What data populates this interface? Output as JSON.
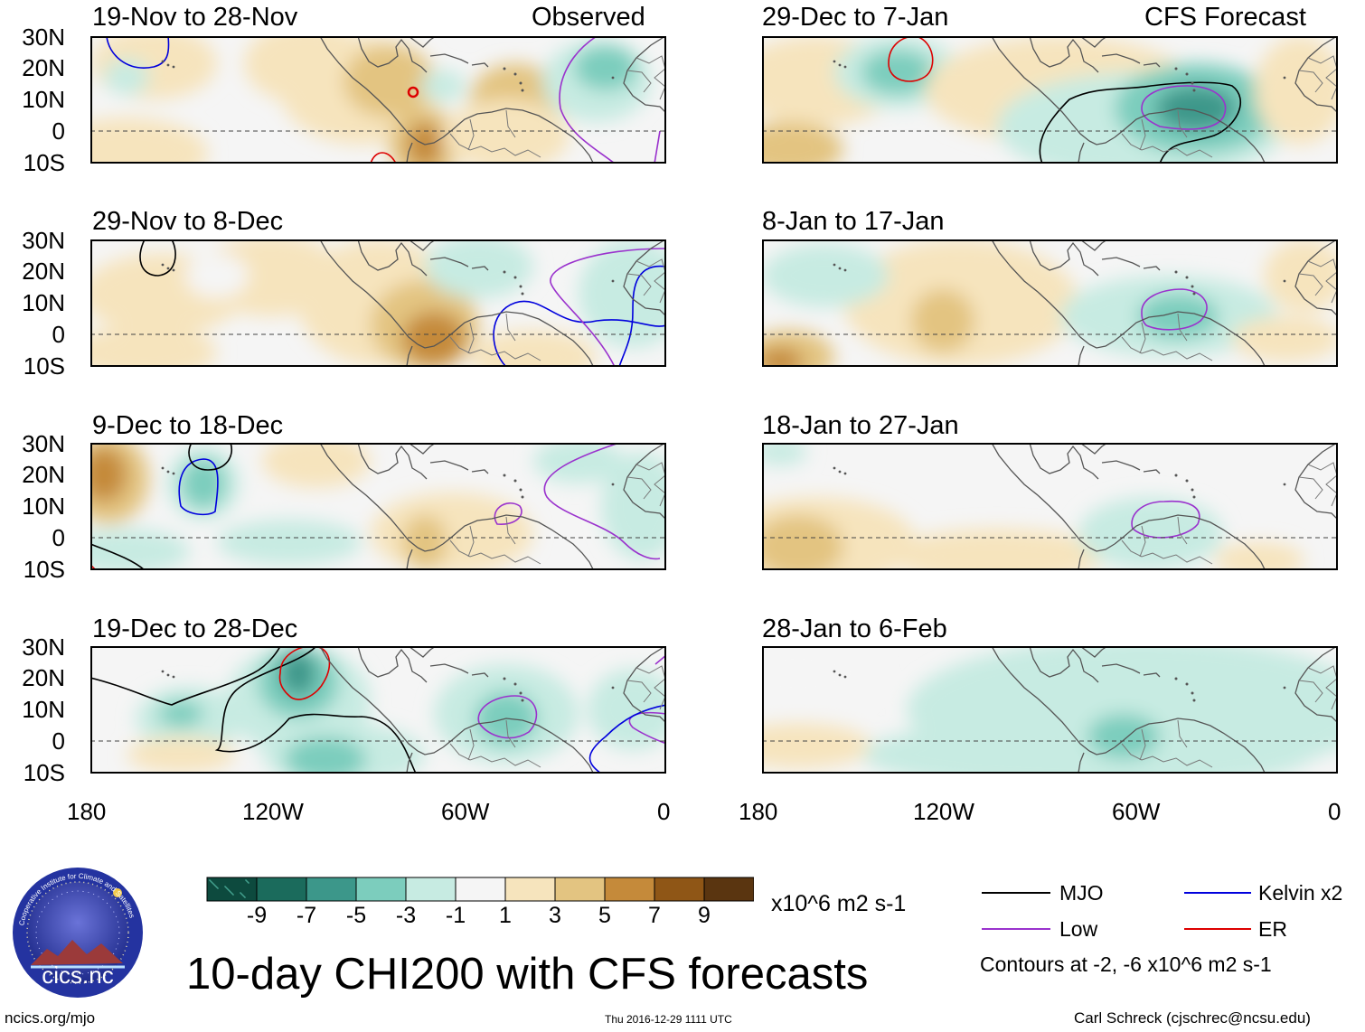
{
  "header": {
    "left_label": "Observed",
    "right_label": "CFS Forecast"
  },
  "panels": [
    {
      "title": "19-Nov to 28-Nov",
      "column": "observed"
    },
    {
      "title": "29-Nov to 8-Dec",
      "column": "observed"
    },
    {
      "title": "9-Dec to 18-Dec",
      "column": "observed"
    },
    {
      "title": "19-Dec to 28-Dec",
      "column": "observed"
    },
    {
      "title": "29-Dec to 7-Jan",
      "column": "forecast"
    },
    {
      "title": "8-Jan to 17-Jan",
      "column": "forecast"
    },
    {
      "title": "18-Jan to 27-Jan",
      "column": "forecast"
    },
    {
      "title": "28-Jan to 6-Feb",
      "column": "forecast"
    }
  ],
  "map_axes": {
    "lat_ticks": [
      "30N",
      "20N",
      "10N",
      "0",
      "10S"
    ],
    "lon_ticks": [
      "180",
      "120W",
      "60W",
      "0"
    ],
    "lat_range": [
      -10,
      30
    ],
    "lon_range": [
      -180,
      0
    ]
  },
  "colorbar": {
    "tick_labels": [
      "-9",
      "-7",
      "-5",
      "-3",
      "-1",
      "1",
      "3",
      "5",
      "7",
      "9"
    ],
    "colors": [
      "#0d4a3e",
      "#1b6b5c",
      "#3c978a",
      "#7ccdbd",
      "#c7ebe2",
      "#f5f5f5",
      "#f6e4bd",
      "#e3c481",
      "#c58a3a",
      "#8f5616",
      "#5a3510"
    ],
    "units": "x10^6 m2 s-1"
  },
  "title": "10-day CHI200 with CFS forecasts",
  "legend": {
    "items": [
      {
        "label": "MJO",
        "color": "#000000"
      },
      {
        "label": "Kelvin x2",
        "color": "#0000dd"
      },
      {
        "label": "Low",
        "color": "#9a32cd"
      },
      {
        "label": "ER",
        "color": "#dd0000"
      }
    ],
    "note": "Contours at -2, -6 x10^6 m2 s-1"
  },
  "logo": {
    "text": "cics.nc",
    "ring_text": "Cooperative Institute for Climate and Satellites"
  },
  "footer": {
    "url": "ncics.org/mjo",
    "timestamp": "Thu 2016-12-29 1111 UTC",
    "credit": "Carl Schreck (cjschrec@ncsu.edu)"
  }
}
